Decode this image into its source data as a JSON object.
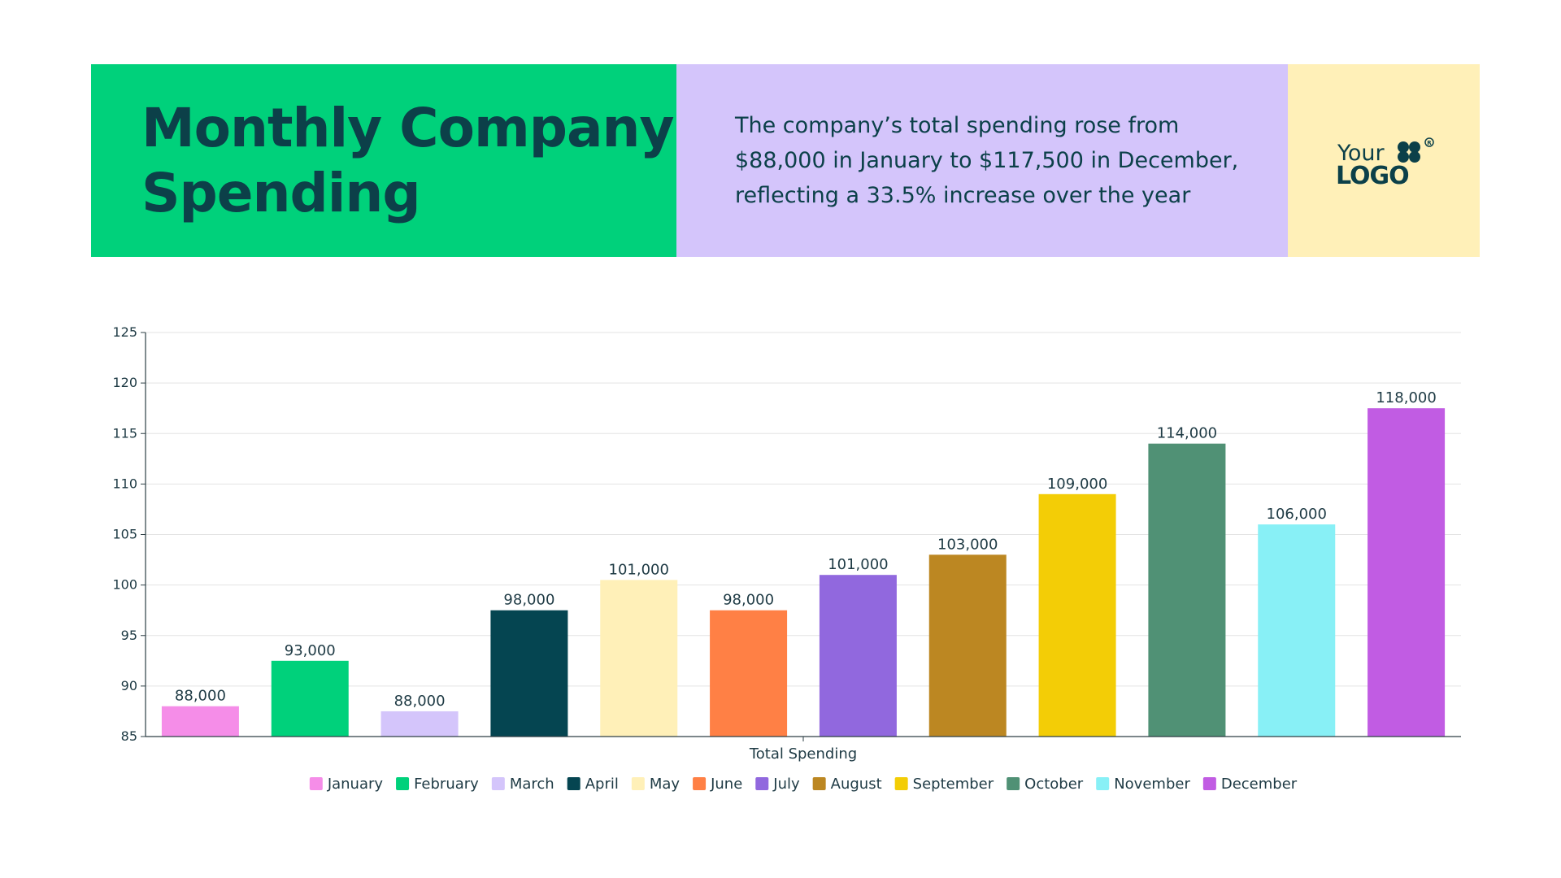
{
  "header": {
    "title_line1": "Monthly Company",
    "title_line2": "Spending",
    "description_line1": "The company’s total spending rose from",
    "description_line2": "$88,000 in January to $117,500 in December,",
    "description_line3": "reflecting a 33.5% increase over the year",
    "logo_word1": "Your",
    "logo_word2": "LOGO",
    "colors": {
      "title_panel": "#00d17b",
      "description_panel": "#d4c5fb",
      "logo_panel": "#fff0b8",
      "text": "#0c4049"
    }
  },
  "chart_data": {
    "type": "bar",
    "title": "",
    "xlabel": "Total Spending",
    "ylabel": "",
    "ylim": [
      85,
      125
    ],
    "yticks": [
      85,
      90,
      95,
      100,
      105,
      110,
      115,
      120,
      125
    ],
    "grid": true,
    "legend_position": "bottom",
    "series": [
      {
        "name": "January",
        "value": 88,
        "label": "88,000",
        "color": "#f58de8"
      },
      {
        "name": "February",
        "value": 92.5,
        "label": "93,000",
        "color": "#00d17b"
      },
      {
        "name": "March",
        "value": 87.5,
        "label": "88,000",
        "color": "#d4c5fb"
      },
      {
        "name": "April",
        "value": 97.5,
        "label": "98,000",
        "color": "#054551"
      },
      {
        "name": "May",
        "value": 100.5,
        "label": "101,000",
        "color": "#fff0b8"
      },
      {
        "name": "June",
        "value": 97.5,
        "label": "98,000",
        "color": "#ff8045"
      },
      {
        "name": "July",
        "value": 101,
        "label": "101,000",
        "color": "#9168de"
      },
      {
        "name": "August",
        "value": 103,
        "label": "103,000",
        "color": "#bc8722"
      },
      {
        "name": "September",
        "value": 109,
        "label": "109,000",
        "color": "#f3cd06"
      },
      {
        "name": "October",
        "value": 114,
        "label": "114,000",
        "color": "#509175"
      },
      {
        "name": "November",
        "value": 106,
        "label": "106,000",
        "color": "#88f0f6"
      },
      {
        "name": "December",
        "value": 117.5,
        "label": "118,000",
        "color": "#c15ce3"
      }
    ]
  }
}
